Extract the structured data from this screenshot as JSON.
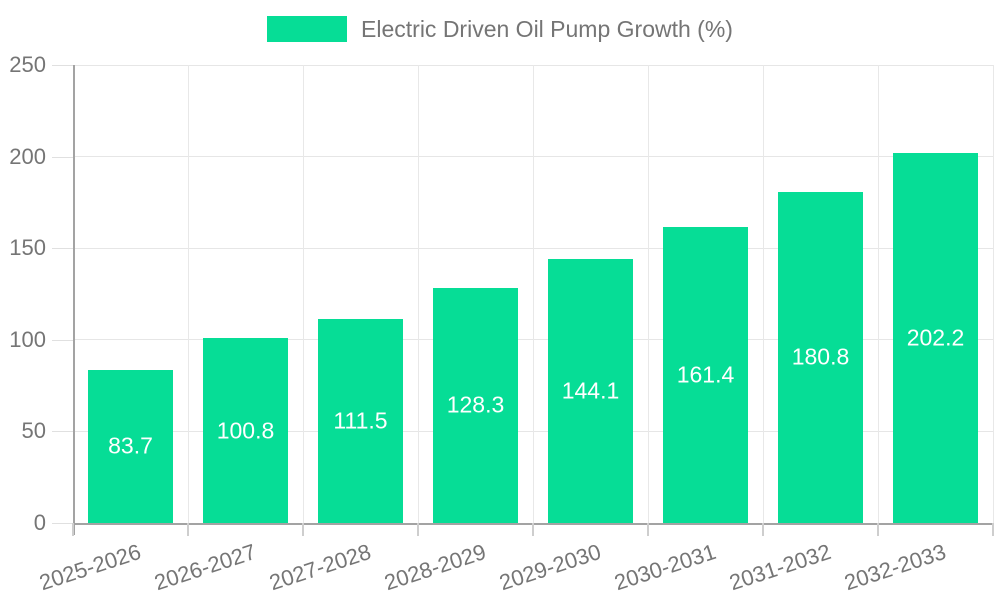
{
  "chart_data": {
    "type": "bar",
    "title": "Electric Driven Oil Pump Growth (%)",
    "series_name": "Electric Driven Oil Pump Growth (%)",
    "categories": [
      "2025-2026",
      "2026-2027",
      "2027-2028",
      "2028-2029",
      "2029-2030",
      "2030-2031",
      "2031-2032",
      "2032-2033"
    ],
    "values": [
      83.7,
      100.8,
      111.5,
      128.3,
      144.1,
      161.4,
      180.8,
      202.2
    ],
    "xlabel": "",
    "ylabel": "",
    "ylim": [
      0,
      250
    ],
    "yticks": [
      0,
      50,
      100,
      150,
      200,
      250
    ],
    "grid": true,
    "legend_position": "top-center",
    "value_labels": "inside-center",
    "colors": {
      "bar": "#06dd96",
      "value_label": "#ffffff",
      "axis_text": "#757575",
      "axis_line": "#a3a3a3",
      "gridline": "#e6e6e6",
      "background": "#ffffff"
    }
  }
}
